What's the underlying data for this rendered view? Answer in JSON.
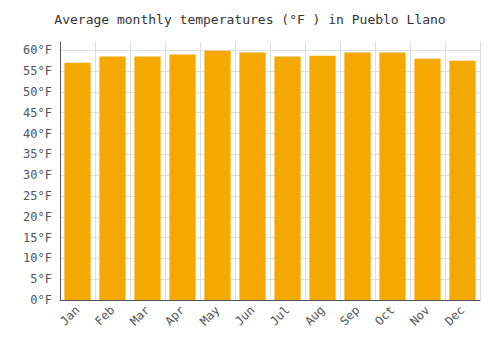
{
  "chart_data": {
    "type": "bar",
    "title": "Average monthly temperatures (°F ) in Pueblo Llano",
    "categories": [
      "Jan",
      "Feb",
      "Mar",
      "Apr",
      "May",
      "Jun",
      "Jul",
      "Aug",
      "Sep",
      "Oct",
      "Nov",
      "Dec"
    ],
    "values": [
      57.0,
      58.5,
      58.5,
      59.0,
      59.9,
      59.5,
      58.5,
      58.7,
      59.5,
      59.5,
      58.0,
      57.5
    ],
    "color": "#F5A800",
    "ylim": [
      0,
      62
    ],
    "yticks": [
      {
        "value": 0,
        "label": "0°F"
      },
      {
        "value": 5,
        "label": "5°F"
      },
      {
        "value": 10,
        "label": "10°F"
      },
      {
        "value": 15,
        "label": "15°F"
      },
      {
        "value": 20,
        "label": "20°F"
      },
      {
        "value": 25,
        "label": "25°F"
      },
      {
        "value": 30,
        "label": "30°F"
      },
      {
        "value": 35,
        "label": "35°F"
      },
      {
        "value": 40,
        "label": "40°F"
      },
      {
        "value": 45,
        "label": "45°F"
      },
      {
        "value": 50,
        "label": "50°F"
      },
      {
        "value": 55,
        "label": "55°F"
      },
      {
        "value": 60,
        "label": "60°F"
      }
    ],
    "grid": true
  }
}
